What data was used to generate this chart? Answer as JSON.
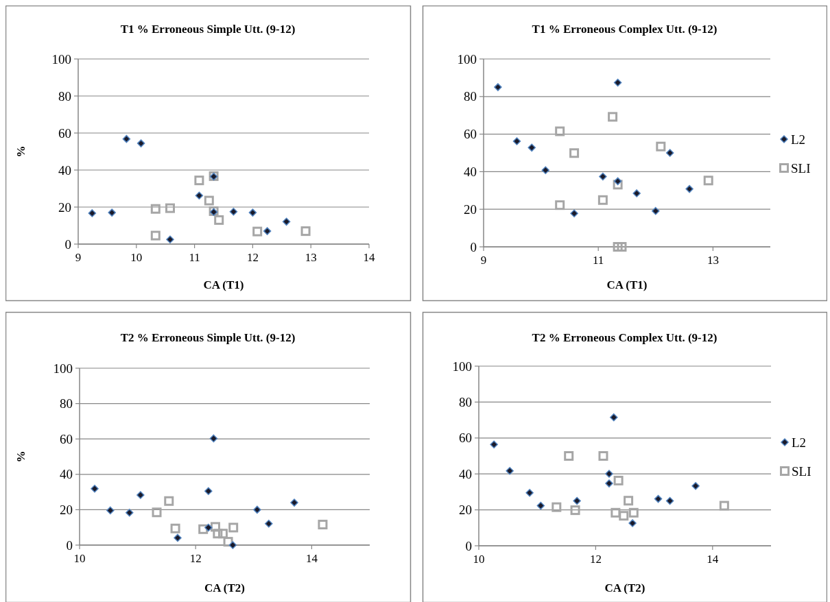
{
  "chart_data": [
    {
      "type": "scatter",
      "title": "T1 % Erroneous Simple Utt. (9-12)",
      "xlabel": "CA (T1)",
      "ylabel": "%",
      "xlim": [
        9,
        14
      ],
      "xticks": [
        9,
        10,
        11,
        12,
        13,
        14
      ],
      "ylim": [
        0,
        100
      ],
      "yticks": [
        0,
        20,
        40,
        60,
        80,
        100
      ],
      "grid": "y",
      "legend": false,
      "series": [
        {
          "color": "#4f81bd",
          "marker": "diamond",
          "x": [
            9.24,
            9.58,
            9.83,
            10.08,
            10.58,
            11.08,
            11.33,
            11.33,
            11.67,
            12.0,
            12.25,
            12.58
          ],
          "values": [
            16.7,
            17.0,
            56.8,
            54.4,
            2.5,
            26.2,
            36.5,
            17.3,
            17.5,
            17.0,
            7.0,
            12.1
          ]
        },
        {
          "color": "#a6a6a6",
          "marker": "square",
          "x": [
            10.33,
            10.33,
            10.58,
            11.08,
            11.25,
            11.33,
            11.33,
            11.42,
            12.08,
            12.91
          ],
          "values": [
            19.0,
            4.6,
            19.4,
            34.4,
            23.5,
            36.7,
            17.8,
            13.0,
            6.8,
            7.0
          ]
        }
      ]
    },
    {
      "type": "scatter",
      "title": "T1 % Erroneous Complex Utt. (9-12)",
      "xlabel": "CA (T1)",
      "xlim": [
        9,
        14
      ],
      "xticks": [
        9,
        11,
        13
      ],
      "ylim": [
        0,
        100
      ],
      "yticks": [
        0,
        20,
        40,
        60,
        80,
        100
      ],
      "grid": "y",
      "legend": "right",
      "series": [
        {
          "name": "L2",
          "color": "#4f81bd",
          "marker": "diamond",
          "x": [
            9.25,
            9.58,
            9.84,
            10.08,
            10.58,
            11.08,
            11.34,
            11.34,
            11.67,
            12.0,
            12.25,
            12.59
          ],
          "values": [
            85.0,
            56.2,
            52.8,
            40.8,
            17.8,
            37.4,
            87.4,
            34.9,
            28.5,
            19.1,
            50.0,
            30.8
          ]
        },
        {
          "name": "SLI",
          "color": "#a6a6a6",
          "marker": "square",
          "x": [
            10.33,
            10.33,
            10.58,
            11.08,
            11.25,
            11.34,
            11.34,
            11.41,
            12.09,
            12.92
          ],
          "values": [
            61.5,
            22.2,
            49.9,
            24.9,
            69.2,
            33.1,
            0,
            0,
            53.4,
            35.3
          ]
        }
      ]
    },
    {
      "type": "scatter",
      "title": "T2 % Erroneous Simple Utt. (9-12)",
      "xlabel": "CA (T2)",
      "ylabel": "%",
      "xlim": [
        10,
        15
      ],
      "xticks": [
        10,
        12,
        14
      ],
      "ylim": [
        0,
        100
      ],
      "yticks": [
        0,
        20,
        40,
        60,
        80,
        100
      ],
      "grid": "y",
      "legend": false,
      "series": [
        {
          "color": "#4f81bd",
          "marker": "diamond",
          "x": [
            10.26,
            10.53,
            10.86,
            11.05,
            11.69,
            12.22,
            12.22,
            12.31,
            12.64,
            13.06,
            13.26,
            13.7
          ],
          "values": [
            31.9,
            19.6,
            18.3,
            28.3,
            4.1,
            30.5,
            9.9,
            60.3,
            0,
            20.0,
            12.1,
            24.0
          ]
        },
        {
          "color": "#a6a6a6",
          "marker": "square",
          "x": [
            11.33,
            11.54,
            11.65,
            12.13,
            12.34,
            12.38,
            12.47,
            12.56,
            12.65,
            14.19
          ],
          "values": [
            18.5,
            24.9,
            9.4,
            9.0,
            10.3,
            6.5,
            6.5,
            1.9,
            9.9,
            11.6
          ]
        }
      ]
    },
    {
      "type": "scatter",
      "title": "T2 % Erroneous Complex Utt. (9-12)",
      "xlabel": "CA (T2)",
      "xlim": [
        10,
        15
      ],
      "xticks": [
        10,
        12,
        14
      ],
      "ylim": [
        0,
        100
      ],
      "yticks": [
        0,
        20,
        40,
        60,
        80,
        100
      ],
      "grid": "y",
      "legend": "right",
      "series": [
        {
          "name": "L2",
          "color": "#4f81bd",
          "marker": "diamond",
          "x": [
            10.26,
            10.53,
            10.87,
            11.06,
            11.68,
            12.23,
            12.23,
            12.31,
            12.63,
            13.07,
            13.27,
            13.71
          ],
          "values": [
            56.4,
            41.7,
            29.5,
            22.3,
            25.0,
            40.1,
            34.7,
            71.5,
            12.6,
            26.1,
            25.0,
            33.3
          ]
        },
        {
          "name": "SLI",
          "color": "#a6a6a6",
          "marker": "square",
          "x": [
            11.33,
            11.54,
            11.65,
            12.13,
            12.34,
            12.39,
            12.48,
            12.56,
            12.65,
            14.2
          ],
          "values": [
            21.5,
            50.0,
            19.8,
            50.0,
            18.4,
            36.3,
            16.7,
            25.1,
            18.4,
            22.3
          ]
        }
      ]
    }
  ]
}
